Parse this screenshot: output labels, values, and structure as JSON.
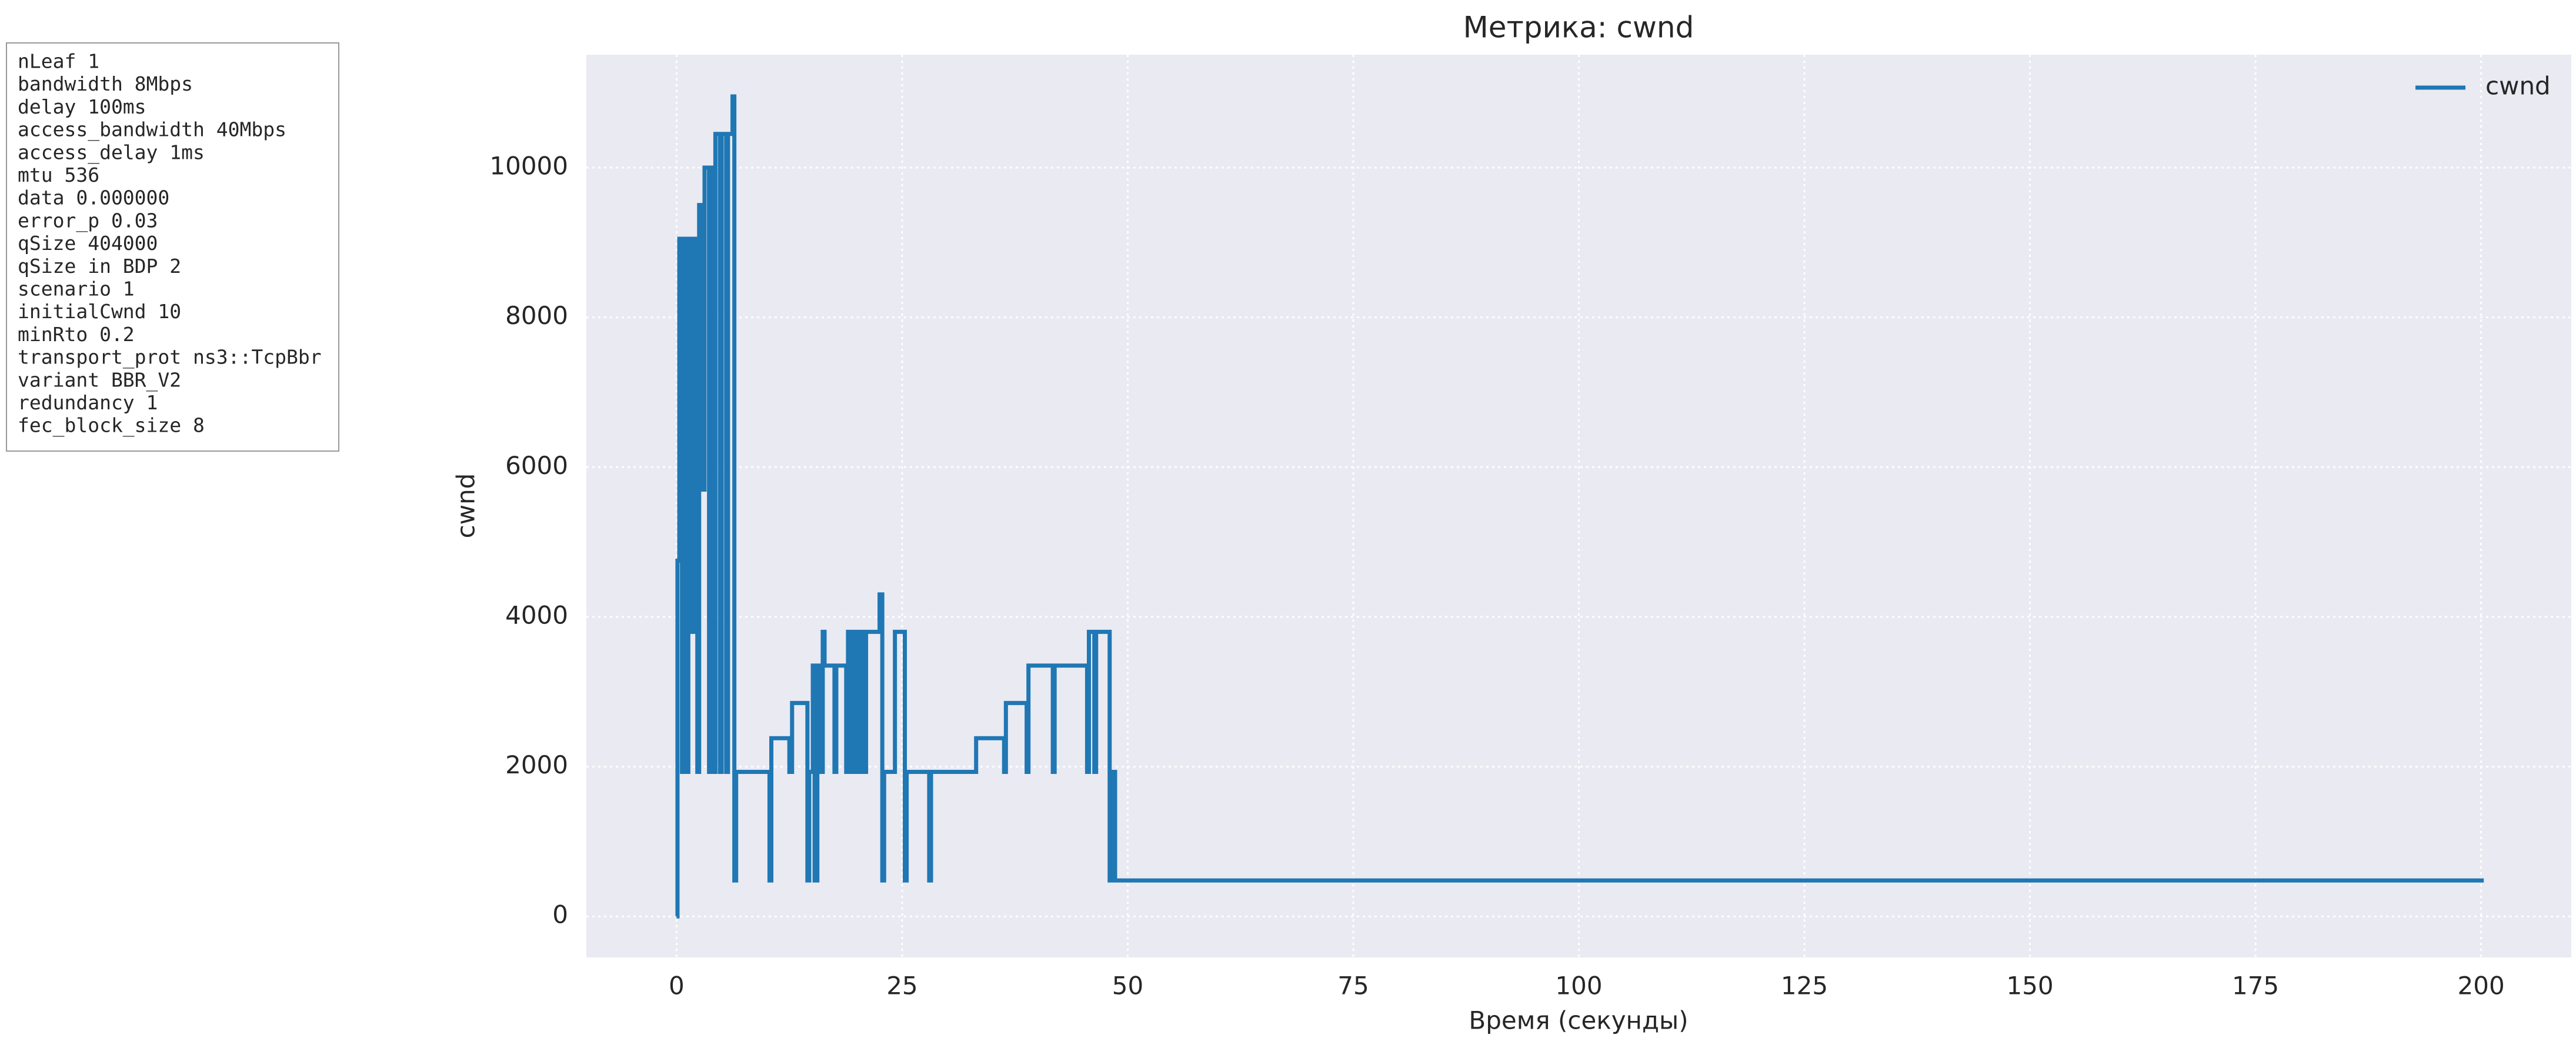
{
  "params": {
    "lines": [
      "nLeaf 1",
      "bandwidth 8Mbps",
      "delay  100ms",
      "access_bandwidth 40Mbps",
      "access_delay 1ms",
      "mtu 536",
      "data  0.000000",
      "error_p 0.03",
      "qSize 404000",
      "qSize in BDP 2",
      "scenario 1",
      "initialCwnd  10",
      "minRto 0.2",
      "transport_prot ns3::TcpBbr",
      "variant BBR_V2",
      "redundancy 1",
      "fec_block_size 8"
    ]
  },
  "chart_data": {
    "type": "line",
    "title": "Метрика: cwnd",
    "x_label": "Время (секунды)",
    "y_label": "cwnd",
    "xlim": [
      -10,
      210
    ],
    "ylim": [
      -548,
      11508
    ],
    "xticks": [
      0,
      25,
      50,
      75,
      100,
      125,
      150,
      175,
      200
    ],
    "yticks": [
      0,
      2000,
      4000,
      6000,
      8000,
      10000
    ],
    "grid": true,
    "legend": "upper right",
    "x": [
      0,
      0.1,
      0.1,
      0.3,
      0.3,
      0.6,
      0.6,
      0.8,
      0.8,
      1.1,
      1.1,
      1.3,
      1.3,
      1.7,
      1.7,
      1.9,
      1.9,
      2.3,
      2.3,
      2.5,
      2.5,
      2.9,
      2.9,
      3.1,
      3.1,
      3.6,
      3.6,
      3.8,
      3.8,
      4.1,
      4.1,
      4.3,
      4.3,
      4.8,
      4.8,
      5.0,
      5.0,
      5.5,
      5.5,
      5.7,
      5.7,
      6.2,
      6.2,
      6.4,
      6.4,
      6.6,
      6.6,
      10.3,
      10.3,
      10.5,
      10.5,
      12.5,
      12.5,
      12.8,
      12.8,
      14.5,
      14.5,
      14.7,
      14.7,
      15.1,
      15.1,
      15.3,
      15.3,
      15.6,
      15.6,
      16.0,
      16.0,
      16.2,
      16.2,
      16.4,
      16.4,
      17.5,
      17.5,
      17.7,
      17.7,
      18.8,
      18.8,
      19.0,
      19.0,
      19.3,
      19.3,
      19.6,
      19.6,
      20.0,
      20.0,
      20.3,
      20.3,
      20.6,
      20.6,
      21.0,
      21.0,
      22.5,
      22.5,
      22.8,
      22.8,
      23.0,
      23.0,
      24.2,
      24.2,
      25.3,
      25.3,
      25.5,
      25.5,
      28.0,
      28.0,
      28.2,
      28.2,
      33.2,
      33.2,
      36.3,
      36.3,
      36.5,
      36.5,
      38.8,
      38.8,
      39.0,
      39.0,
      41.7,
      41.7,
      41.9,
      41.9,
      45.5,
      45.5,
      45.7,
      45.7,
      46.3,
      46.3,
      46.5,
      46.5,
      48.0,
      48.0,
      48.3,
      48.3,
      48.6,
      48.6,
      200.3
    ],
    "series": [
      {
        "name": "cwnd",
        "color": "#1f77b4",
        "values": [
          0,
          0,
          4750,
          4750,
          9050,
          9050,
          1930,
          1930,
          9050,
          9050,
          1930,
          1930,
          9050,
          9050,
          3800,
          3800,
          9050,
          9050,
          1930,
          1930,
          9500,
          9500,
          5700,
          5700,
          10000,
          10000,
          1930,
          1930,
          10000,
          10000,
          1930,
          1930,
          10450,
          10450,
          1930,
          1930,
          10450,
          10450,
          1930,
          1930,
          10450,
          10450,
          10950,
          10950,
          480,
          480,
          1930,
          1930,
          480,
          480,
          2380,
          2380,
          1930,
          1930,
          2850,
          2850,
          480,
          480,
          1930,
          1930,
          3350,
          3350,
          480,
          480,
          3350,
          3350,
          1930,
          1930,
          3800,
          3800,
          3350,
          3350,
          1930,
          1930,
          3350,
          3350,
          1930,
          1930,
          3800,
          3800,
          1930,
          1930,
          3800,
          3800,
          1930,
          1930,
          3800,
          3800,
          1930,
          1930,
          3800,
          3800,
          4300,
          4300,
          480,
          480,
          1930,
          1930,
          3800,
          3800,
          480,
          480,
          1930,
          1930,
          480,
          480,
          1930,
          1930,
          2380,
          2380,
          1930,
          1930,
          2850,
          2850,
          1930,
          1930,
          3350,
          3350,
          1930,
          1930,
          3350,
          3350,
          1930,
          1930,
          3800,
          3800,
          1930,
          1930,
          3800,
          3800,
          480,
          480,
          1930,
          1930,
          480,
          480
        ]
      }
    ]
  }
}
